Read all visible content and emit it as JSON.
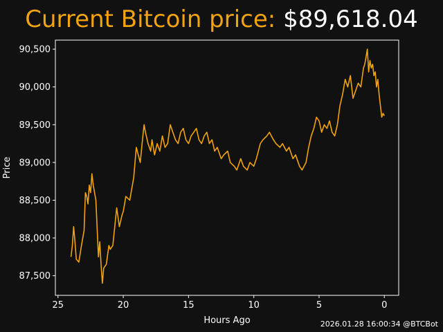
{
  "header": {
    "title_label": "Current Bitcoin price:",
    "price": "$89,618.04"
  },
  "footer": {
    "timestamp": "2026.01.28 16:00:34 @BTCBot"
  },
  "colors": {
    "background": "#111111",
    "accent": "#f2a30f",
    "text": "#ffffff"
  },
  "chart_data": {
    "type": "line",
    "xlabel": "Hours Ago",
    "ylabel": "Price",
    "xlim": [
      25.2,
      -1.1
    ],
    "ylim": [
      87240,
      90620
    ],
    "x_axis_inverted": true,
    "grid": false,
    "x_ticks": [
      25,
      20,
      15,
      10,
      5,
      0
    ],
    "x_tick_labels": [
      "25",
      "20",
      "15",
      "10",
      "5",
      "0"
    ],
    "y_ticks": [
      87500,
      88000,
      88500,
      89000,
      89500,
      90000,
      90500
    ],
    "y_tick_labels": [
      "87,500",
      "88,000",
      "88,500",
      "89,000",
      "89,500",
      "90,000",
      "90,500"
    ],
    "series": [
      {
        "color": "#f2a30f",
        "x": [
          24,
          23.9,
          23.8,
          23.7,
          23.6,
          23.4,
          23.2,
          23,
          22.9,
          22.8,
          22.7,
          22.6,
          22.5,
          22.4,
          22.3,
          22.1,
          21.9,
          21.8,
          21.7,
          21.6,
          21.5,
          21.3,
          21.1,
          21,
          20.8,
          20.5,
          20.3,
          20.1,
          20,
          19.8,
          19.5,
          19.2,
          19,
          18.7,
          18.5,
          18.4,
          18.3,
          18.1,
          17.9,
          17.8,
          17.6,
          17.4,
          17.2,
          17,
          16.8,
          16.6,
          16.4,
          16.2,
          16,
          15.8,
          15.6,
          15.4,
          15.2,
          15,
          14.8,
          14.6,
          14.4,
          14.2,
          14,
          13.8,
          13.6,
          13.4,
          13.2,
          13,
          12.8,
          12.5,
          12.3,
          12,
          11.8,
          11.5,
          11.3,
          11,
          10.8,
          10.5,
          10.3,
          10,
          9.8,
          9.5,
          9.3,
          9,
          8.8,
          8.5,
          8.3,
          8,
          7.8,
          7.5,
          7.3,
          7,
          6.8,
          6.5,
          6.3,
          6,
          5.8,
          5.6,
          5.4,
          5.2,
          5,
          4.8,
          4.6,
          4.4,
          4.2,
          4,
          3.8,
          3.6,
          3.4,
          3.2,
          3,
          2.8,
          2.6,
          2.4,
          2.2,
          2,
          1.8,
          1.6,
          1.5,
          1.4,
          1.3,
          1.2,
          1.1,
          1,
          0.9,
          0.8,
          0.7,
          0.6,
          0.5,
          0.4,
          0.3,
          0.2,
          0.1,
          0
        ],
        "values": [
          87750,
          87900,
          88150,
          87950,
          87720,
          87680,
          87900,
          88100,
          88600,
          88550,
          88450,
          88700,
          88600,
          88850,
          88700,
          88500,
          87750,
          87950,
          87650,
          87400,
          87600,
          87650,
          87900,
          87850,
          87900,
          88400,
          88150,
          88300,
          88350,
          88550,
          88500,
          88800,
          89200,
          89000,
          89350,
          89500,
          89400,
          89250,
          89150,
          89300,
          89100,
          89250,
          89150,
          89350,
          89200,
          89250,
          89500,
          89400,
          89300,
          89250,
          89400,
          89450,
          89300,
          89250,
          89350,
          89400,
          89450,
          89300,
          89250,
          89350,
          89400,
          89250,
          89300,
          89150,
          89200,
          89050,
          89100,
          89150,
          89000,
          88950,
          88900,
          89050,
          88950,
          88900,
          89000,
          88950,
          89050,
          89250,
          89300,
          89350,
          89400,
          89300,
          89250,
          89200,
          89250,
          89150,
          89200,
          89050,
          89100,
          88950,
          88900,
          89000,
          89200,
          89350,
          89450,
          89600,
          89550,
          89400,
          89500,
          89450,
          89550,
          89400,
          89350,
          89500,
          89750,
          89900,
          90100,
          90000,
          90150,
          89850,
          89950,
          90050,
          90000,
          90250,
          90300,
          90400,
          90500,
          90200,
          90350,
          90250,
          90300,
          90150,
          90200,
          90000,
          90100,
          89900,
          89750,
          89600,
          89650,
          89618
        ]
      }
    ]
  }
}
